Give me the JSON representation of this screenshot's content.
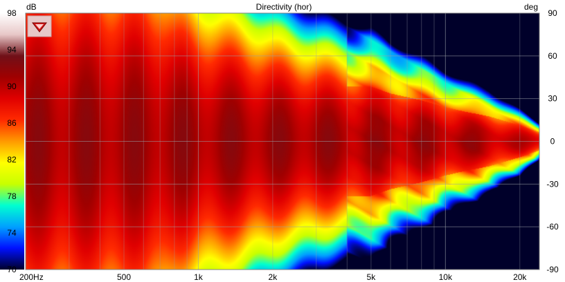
{
  "chart_data": {
    "type": "heatmap",
    "title": "Directivity (hor)",
    "colorbar": {
      "label": "dB",
      "ticks": [
        "98",
        "94",
        "90",
        "86",
        "82",
        "78",
        "74",
        "70"
      ],
      "range": [
        70,
        98
      ],
      "colors": [
        "#00002a",
        "#0010ff",
        "#00a0ff",
        "#00ffd0",
        "#c8ff00",
        "#ffff00",
        "#ff9a00",
        "#ff2a00",
        "#e00000",
        "#a00000",
        "#701018",
        "#e8c8c8",
        "#ffffff"
      ]
    },
    "x_axis": {
      "label": "",
      "scale": "log",
      "range": [
        200,
        24000
      ],
      "ticks": [
        {
          "value": 200,
          "label": "200Hz"
        },
        {
          "value": 500,
          "label": "500"
        },
        {
          "value": 1000,
          "label": "1k"
        },
        {
          "value": 2000,
          "label": "2k"
        },
        {
          "value": 5000,
          "label": "5k"
        },
        {
          "value": 10000,
          "label": "10k"
        },
        {
          "value": 20000,
          "label": "20k"
        }
      ]
    },
    "y_axis": {
      "label": "deg",
      "range": [
        -90,
        90
      ],
      "ticks": [
        "90",
        "60",
        "30",
        "0",
        "-30",
        "-60",
        "-90"
      ]
    },
    "beamwidth_profile": {
      "freq_hz": [
        200,
        400,
        700,
        800,
        1000,
        1500,
        2000,
        3000,
        4000,
        5000,
        6000,
        8000,
        10000,
        12000,
        15000,
        20000,
        24000
      ],
      "half_width_deg": [
        110,
        108,
        100,
        88,
        78,
        68,
        60,
        52,
        48,
        48,
        42,
        36,
        30,
        26,
        22,
        14,
        8
      ]
    },
    "grid": true,
    "logo": "speaker-brand-logo"
  }
}
